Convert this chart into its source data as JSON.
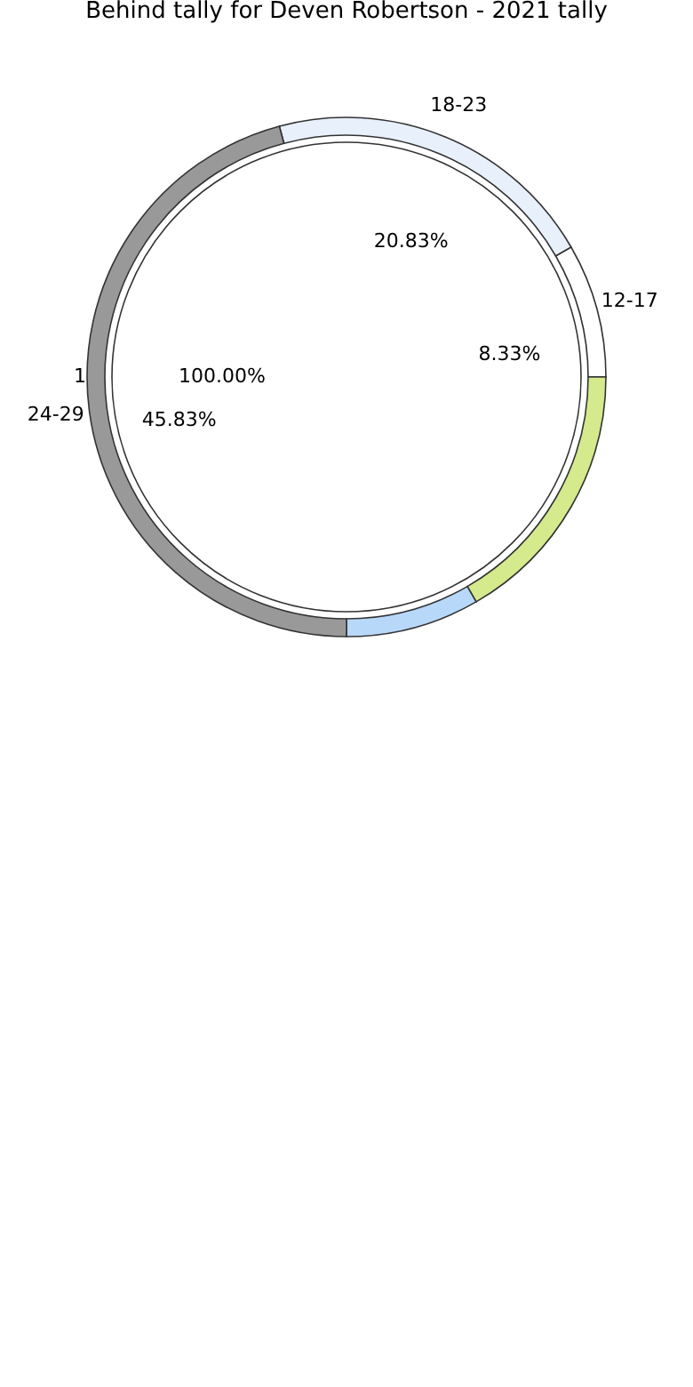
{
  "chart_data": [
    {
      "type": "pie",
      "title": "Behind tally for Deven Robertson - 2021 tally",
      "categories": [
        "1"
      ],
      "values": [
        100
      ],
      "colors": [
        "#ffffff"
      ],
      "value_labels": [
        "100.00%"
      ]
    },
    {
      "type": "donut",
      "categories": [
        "18-23",
        "12-17",
        null,
        null,
        "24-29"
      ],
      "values": [
        20.83,
        8.33,
        16.67,
        8.33,
        45.83
      ],
      "colors": [
        "#e8f0fc",
        "#ffffff",
        "#d4ea8c",
        "#b8d8fa",
        "#999999"
      ],
      "value_labels": [
        "20.83%",
        "8.33%",
        null,
        null,
        "45.83%"
      ]
    }
  ]
}
